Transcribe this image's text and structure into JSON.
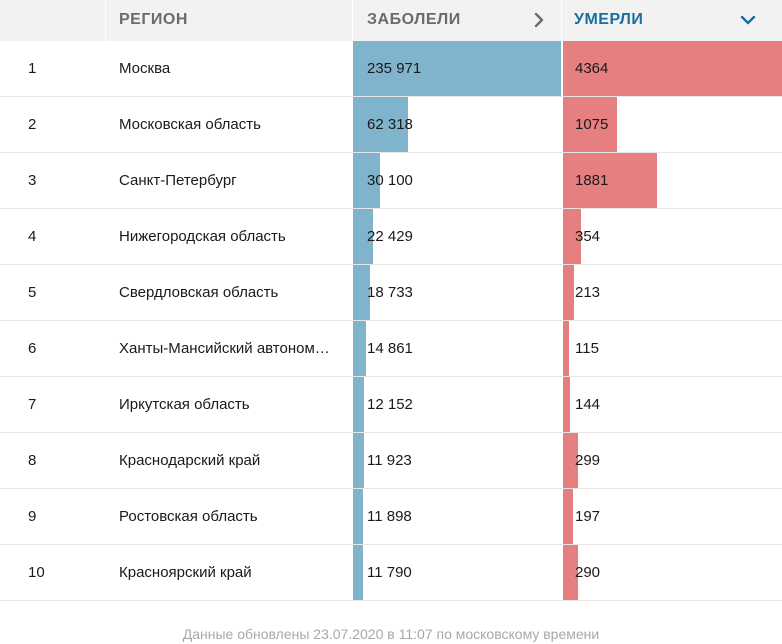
{
  "header": {
    "region": "РЕГИОН",
    "sick": "ЗАБОЛЕЛИ",
    "dead": "УМЕРЛИ"
  },
  "rows": [
    {
      "rank": "1",
      "region": "Москва",
      "sick": "235 971",
      "dead": "4364",
      "sick_value": 235971,
      "dead_value": 4364
    },
    {
      "rank": "2",
      "region": "Московская область",
      "sick": "62 318",
      "dead": "1075",
      "sick_value": 62318,
      "dead_value": 1075
    },
    {
      "rank": "3",
      "region": "Санкт-Петербург",
      "sick": "30 100",
      "dead": "1881",
      "sick_value": 30100,
      "dead_value": 1881
    },
    {
      "rank": "4",
      "region": "Нижегородская область",
      "sick": "22 429",
      "dead": "354",
      "sick_value": 22429,
      "dead_value": 354
    },
    {
      "rank": "5",
      "region": "Свердловская область",
      "sick": "18 733",
      "dead": "213",
      "sick_value": 18733,
      "dead_value": 213
    },
    {
      "rank": "6",
      "region": "Ханты-Мансийский автоном…",
      "sick": "14 861",
      "dead": "115",
      "sick_value": 14861,
      "dead_value": 115
    },
    {
      "rank": "7",
      "region": "Иркутская область",
      "sick": "12 152",
      "dead": "144",
      "sick_value": 12152,
      "dead_value": 144
    },
    {
      "rank": "8",
      "region": "Краснодарский край",
      "sick": "11 923",
      "dead": "299",
      "sick_value": 11923,
      "dead_value": 299
    },
    {
      "rank": "9",
      "region": "Ростовская область",
      "sick": "11 898",
      "dead": "197",
      "sick_value": 11898,
      "dead_value": 197
    },
    {
      "rank": "10",
      "region": "Красноярский край",
      "sick": "11 790",
      "dead": "290",
      "sick_value": 11790,
      "dead_value": 290
    }
  ],
  "footer": "Данные обновлены 23.07.2020 в 11:07 по московскому времени",
  "colors": {
    "sick_bar": "#80b3cc",
    "dead_bar": "#e68080",
    "active_header": "#1a6ea0"
  },
  "icons": {
    "sick_sort": "chevron-right-icon",
    "dead_sort": "chevron-down-icon"
  }
}
